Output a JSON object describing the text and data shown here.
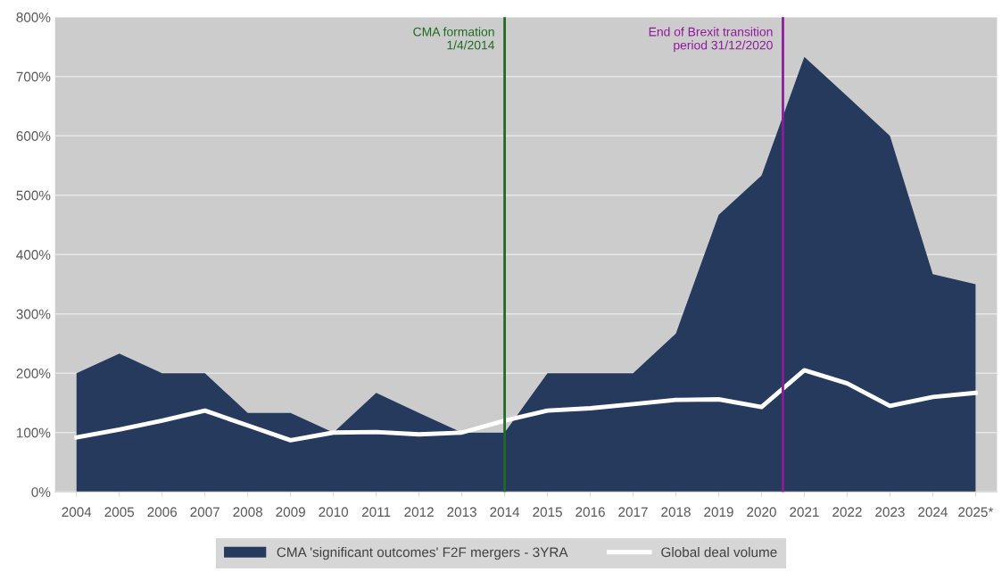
{
  "chart_data": {
    "type": "area",
    "x": [
      2004,
      2005,
      2006,
      2007,
      2008,
      2009,
      2010,
      2011,
      2012,
      2013,
      2014,
      2015,
      2016,
      2017,
      2018,
      2019,
      2020,
      2021,
      2022,
      2023,
      2024,
      2025
    ],
    "series": [
      {
        "name": "CMA 'significant outcomes' F2F mergers - 3YRA",
        "color": "#263a5e",
        "values": [
          200,
          233,
          200,
          200,
          133,
          133,
          100,
          167,
          133,
          100,
          100,
          200,
          200,
          200,
          267,
          467,
          533,
          733,
          667,
          600,
          367,
          350
        ]
      },
      {
        "name": "Global deal volume",
        "type": "line",
        "color": "#ffffff",
        "values": [
          92,
          105,
          120,
          137,
          112,
          87,
          100,
          101,
          97,
          100,
          120,
          137,
          141,
          148,
          155,
          156,
          143,
          205,
          183,
          145,
          160,
          167
        ]
      }
    ],
    "xlim": [
      2003.5,
      2025.5
    ],
    "xticks": [
      2004,
      2005,
      2006,
      2007,
      2008,
      2009,
      2010,
      2011,
      2012,
      2013,
      2014,
      2015,
      2016,
      2017,
      2018,
      2019,
      2020,
      2021,
      2022,
      2023,
      2024,
      {
        "value": 2025,
        "label": "2025*"
      }
    ],
    "ylim": [
      0,
      800
    ],
    "yticks": [
      {
        "value": 0,
        "label": "0%"
      },
      {
        "value": 100,
        "label": "100%"
      },
      {
        "value": 200,
        "label": "200%"
      },
      {
        "value": 300,
        "label": "300%"
      },
      {
        "value": 400,
        "label": "400%"
      },
      {
        "value": 500,
        "label": "500%"
      },
      {
        "value": 600,
        "label": "600%"
      },
      {
        "value": 700,
        "label": "700%"
      },
      {
        "value": 800,
        "label": "800%"
      }
    ],
    "ref_lines": [
      {
        "axis": "x",
        "value": 2014,
        "label": "CMA formation\n1/4/2014",
        "color": "#1f6b21"
      },
      {
        "axis": "x",
        "value": 2020.5,
        "label": "End of Brexit transition\nperiod 31/12/2020",
        "color": "#8e1a9c"
      }
    ],
    "grid": "y",
    "legend": "bottom"
  }
}
